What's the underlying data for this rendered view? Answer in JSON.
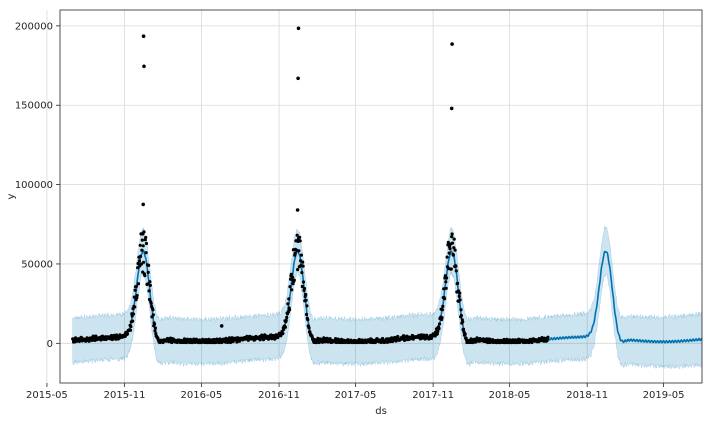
{
  "chart_data": {
    "type": "line",
    "xlabel": "ds",
    "ylabel": "y",
    "xlim": [
      "2015-06-01",
      "2019-07-31"
    ],
    "ylim": [
      -25000,
      210000
    ],
    "grid": true,
    "x_tick_labels": [
      "2015-05",
      "2015-11",
      "2016-05",
      "2016-11",
      "2017-05",
      "2017-11",
      "2018-05",
      "2018-11",
      "2019-05"
    ],
    "x_ticks": [
      "2015-05-01",
      "2015-11-01",
      "2016-05-01",
      "2016-11-01",
      "2017-05-01",
      "2017-11-01",
      "2018-05-01",
      "2018-11-01",
      "2019-05-01"
    ],
    "y_tick_labels": [
      "0",
      "50000",
      "100000",
      "150000",
      "200000"
    ],
    "y_ticks": [
      0,
      50000,
      100000,
      150000,
      200000
    ],
    "colors": {
      "forecast": "#0072B2",
      "interval": "#0072B2",
      "points": "#000000",
      "grid": "#d9d9d9",
      "spine": "#262626"
    },
    "observed_range": [
      "2015-07-01",
      "2018-07-31"
    ],
    "forecast_end": "2019-07-31",
    "seasonal_peak": {
      "month": 12,
      "day": 15,
      "peak_yhat": 57000,
      "width_days": 15
    },
    "baseline_yhat": 2500,
    "interval_half_width": 14000,
    "outliers": [
      {
        "ds": "2015-12-16",
        "y": 193500
      },
      {
        "ds": "2015-12-17",
        "y": 174500
      },
      {
        "ds": "2015-12-15",
        "y": 87500
      },
      {
        "ds": "2015-12-14",
        "y": 69000
      },
      {
        "ds": "2016-12-17",
        "y": 198500
      },
      {
        "ds": "2016-12-16",
        "y": 167000
      },
      {
        "ds": "2016-12-15",
        "y": 84000
      },
      {
        "ds": "2017-12-16",
        "y": 188500
      },
      {
        "ds": "2017-12-15",
        "y": 148000
      },
      {
        "ds": "2016-06-18",
        "y": 11000
      }
    ]
  }
}
